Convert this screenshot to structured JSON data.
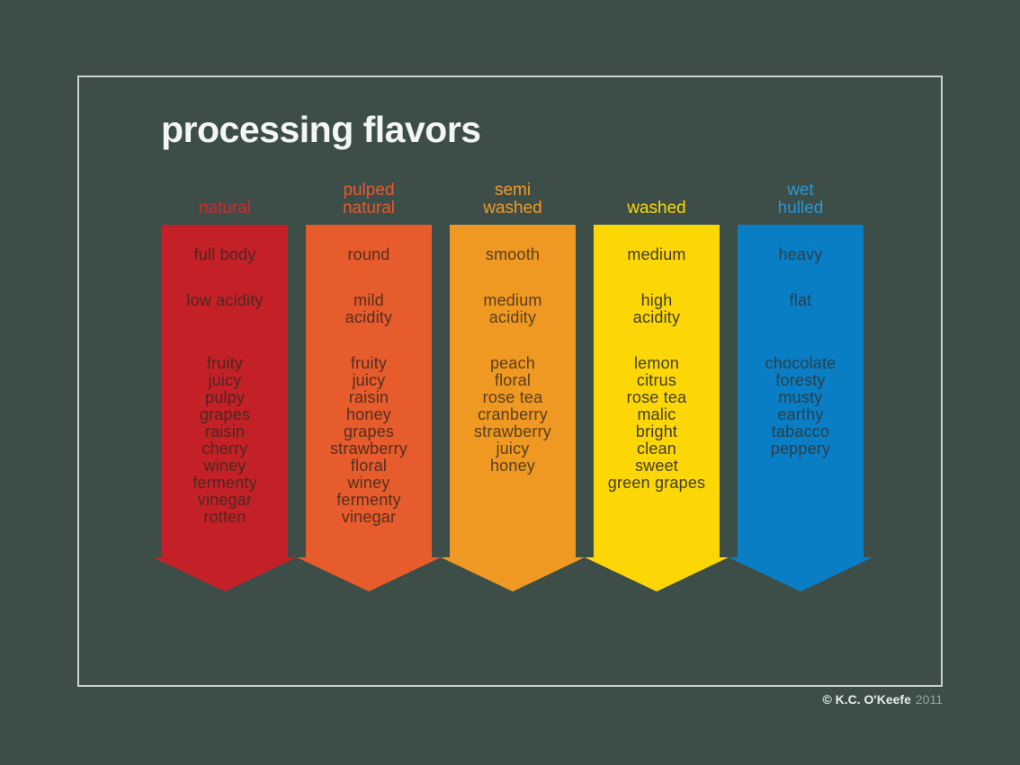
{
  "page": {
    "title": "processing flavors",
    "title_color": "#f4f6f3",
    "background_color": "#3d4e49",
    "frame_border_color": "#ccd3cc"
  },
  "columns": [
    {
      "id": "natural",
      "header": "natural",
      "header_color": "#d12a28",
      "color": "#c32127",
      "text_color": "#4d2721",
      "body": "full body",
      "acidity": "low acidity",
      "flavors": "fruity\njuicy\npulpy\ngrapes\nraisin\ncherry\nwiney\nfermenty\nvinegar\nrotten"
    },
    {
      "id": "pulped-natural",
      "header": "pulped\nnatural",
      "header_color": "#e6592c",
      "color": "#e65c2d",
      "text_color": "#542f1e",
      "body": "round",
      "acidity": "mild\nacidity",
      "flavors": "fruity\njuicy\nraisin\nhoney\ngrapes\nstrawberry\nfloral\nwiney\nfermenty\nvinegar"
    },
    {
      "id": "semi-washed",
      "header": "semi\nwashed",
      "header_color": "#ef9a28",
      "color": "#ef9822",
      "text_color": "#59401d",
      "body": "smooth",
      "acidity": "medium\nacidity",
      "flavors": "peach\nfloral\nrose tea\ncranberry\nstrawberry\njuicy\nhoney"
    },
    {
      "id": "washed",
      "header": "washed",
      "header_color": "#fdd705",
      "color": "#fdd705",
      "text_color": "#413d29",
      "body": "medium",
      "acidity": "high\nacidity",
      "flavors": "lemon\ncitrus\nrose tea\nmalic\nbright\nclean\nsweet\ngreen grapes"
    },
    {
      "id": "wet-hulled",
      "header": "wet\nhulled",
      "header_color": "#2a96d5",
      "color": "#0a7ec4",
      "text_color": "#2b3f49",
      "body": "heavy",
      "acidity": "flat",
      "flavors": "chocolate\nforesty\nmusty\nearthy\ntabacco\npeppery"
    }
  ],
  "footer": {
    "copyright": "© K.C. O'Keefe",
    "year": "2011"
  }
}
